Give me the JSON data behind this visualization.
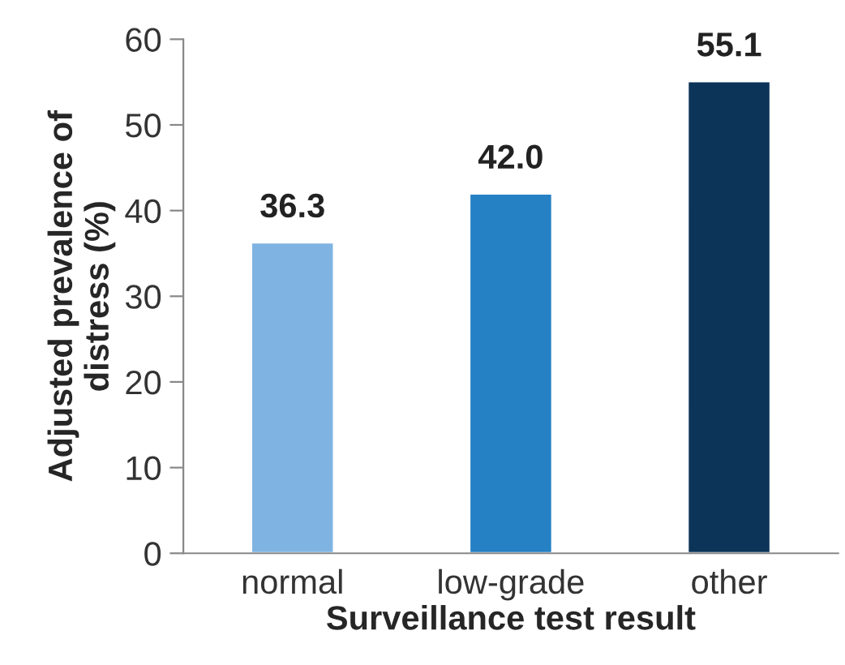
{
  "chart_data": {
    "type": "bar",
    "xlabel": "Surveillance test result",
    "ylabel": "Adjusted prevalence of\ndistress (%)",
    "categories": [
      "normal",
      "low-grade",
      "other"
    ],
    "values": [
      36.3,
      42.0,
      55.1
    ],
    "colors": [
      "#7fb4e2",
      "#2580c4",
      "#0c3459"
    ],
    "value_labels": [
      "36.3",
      "42.0",
      "55.1"
    ],
    "ylim": [
      0,
      60
    ],
    "yticks": [
      0,
      10,
      20,
      30,
      40,
      50,
      60
    ],
    "grid": false,
    "legend": false
  }
}
